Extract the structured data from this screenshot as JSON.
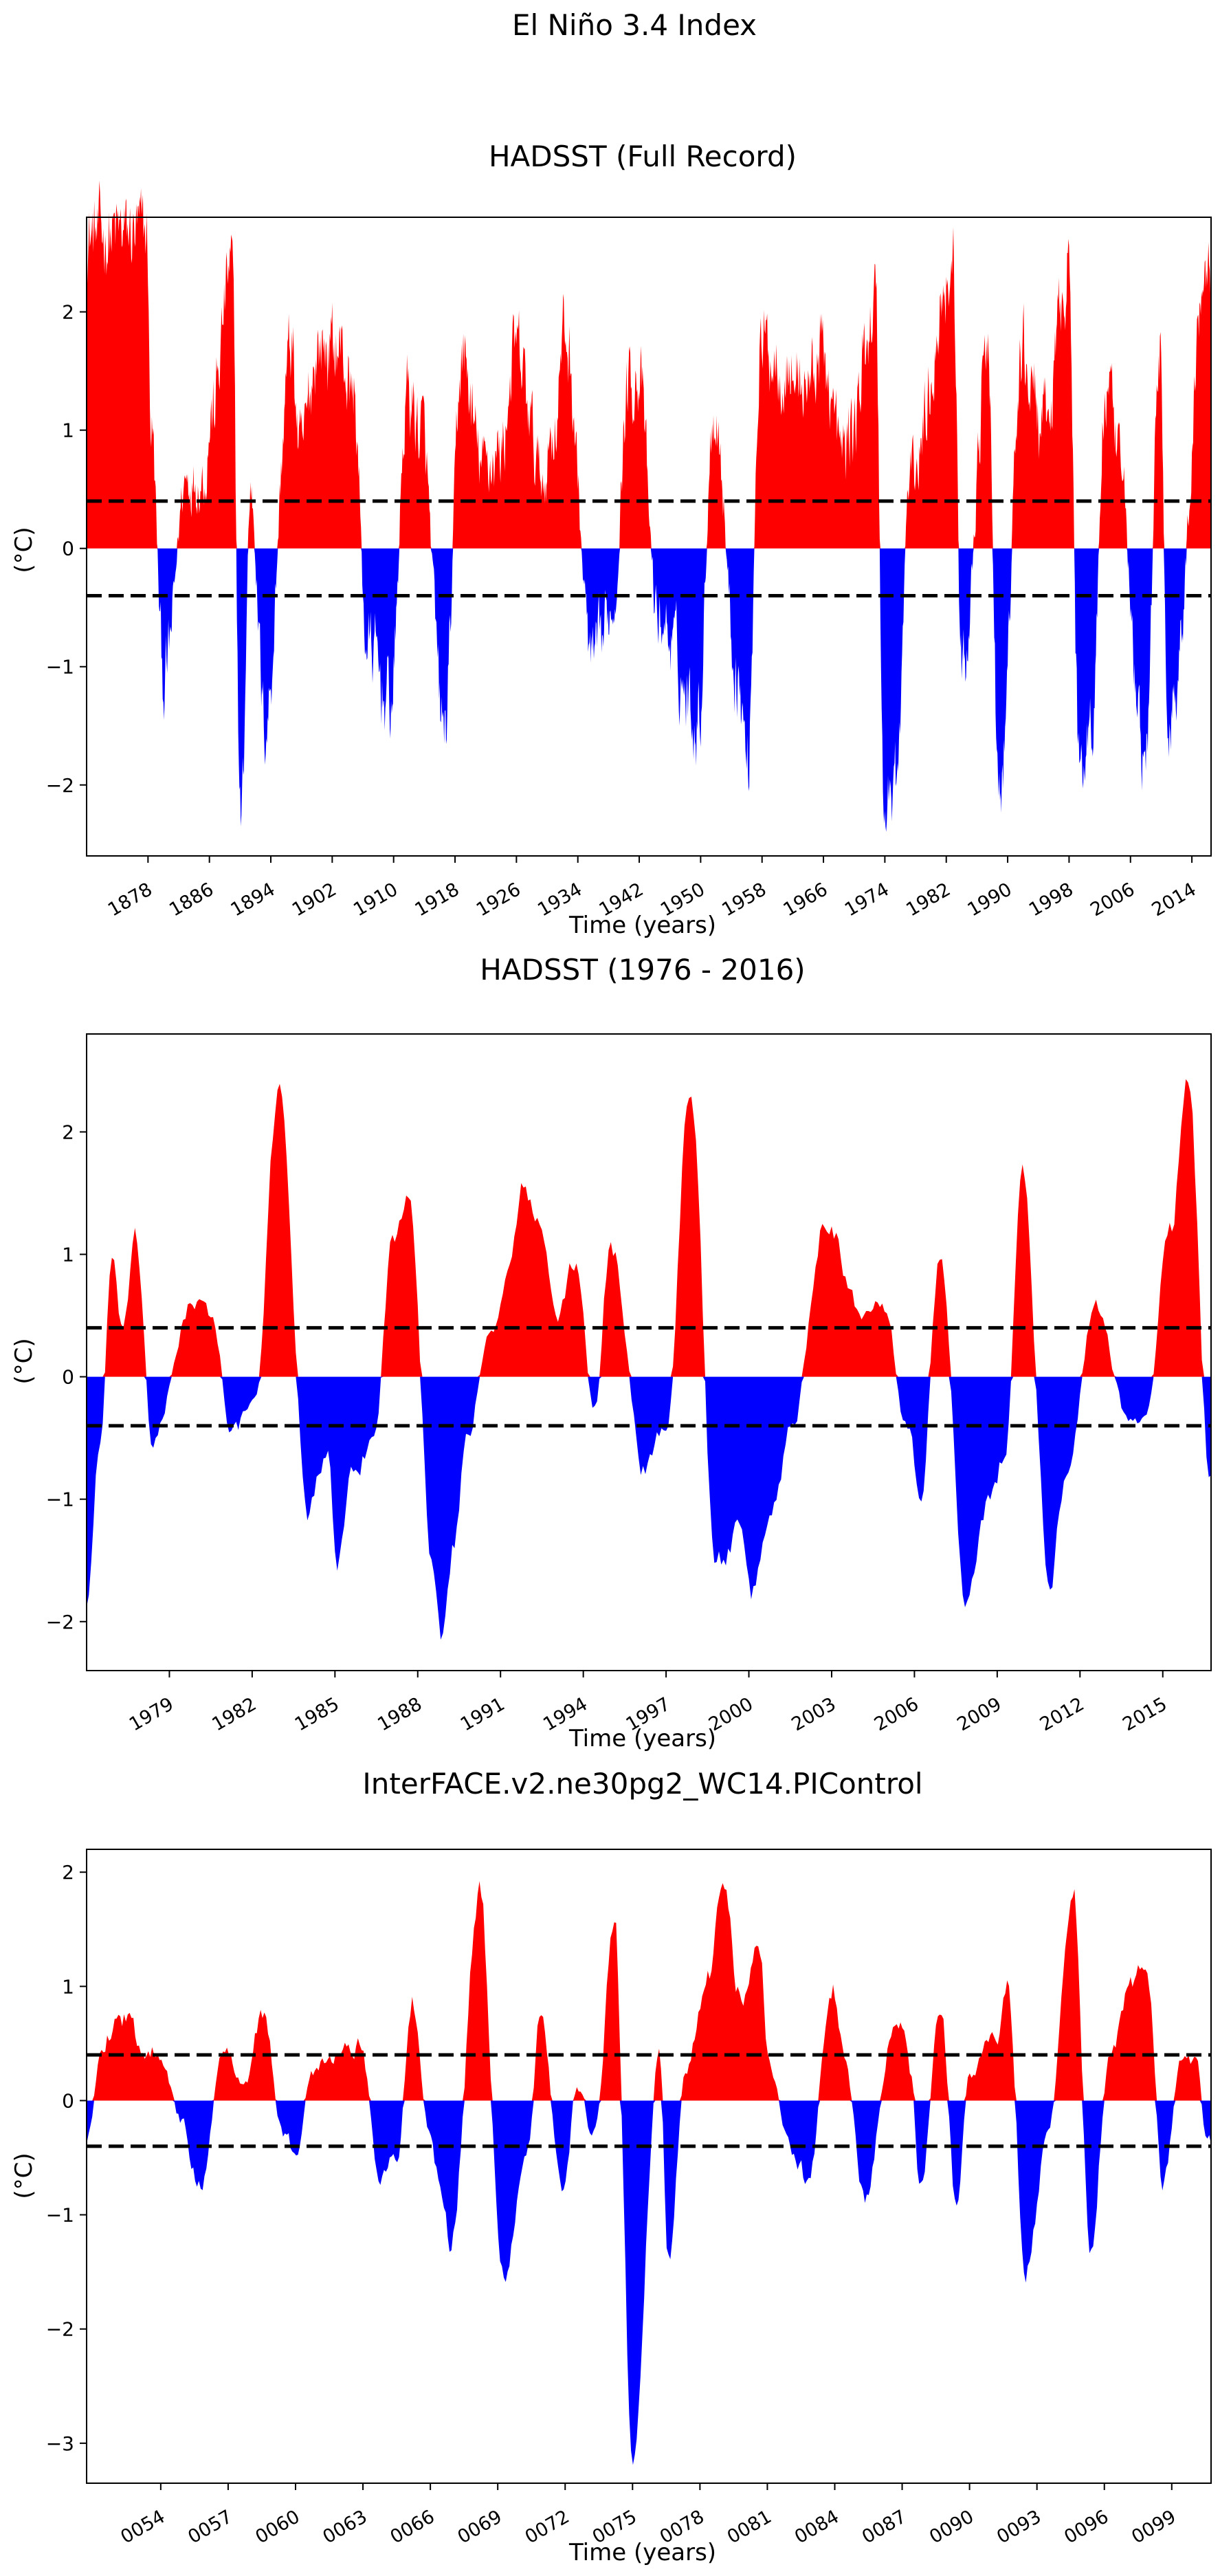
{
  "figure": {
    "suptitle": "El Niño 3.4 Index"
  },
  "chart_data": [
    {
      "id": "full",
      "type": "area",
      "title": "HADSST (Full Record)",
      "xlabel": "Time (years)",
      "ylabel": "(°C)",
      "xlim": [
        1870.0,
        2016.5
      ],
      "ylim": [
        -2.6,
        2.8
      ],
      "yticks": [
        -2,
        -1,
        0,
        1,
        2
      ],
      "xticks": [
        1878,
        1886,
        1894,
        1902,
        1910,
        1918,
        1926,
        1934,
        1942,
        1950,
        1958,
        1966,
        1974,
        1982,
        1990,
        1998,
        2006,
        2014
      ],
      "threshold_lines": [
        0.4,
        -0.4
      ],
      "positive_color": "#ff0000",
      "negative_color": "#0000ff",
      "amp": 1.6,
      "events": [
        [
          1877.9,
          2.65
        ],
        [
          1878.3,
          1.1
        ],
        [
          1880.1,
          -1.1
        ],
        [
          1883.0,
          0.6
        ],
        [
          1885.3,
          0.6
        ],
        [
          1886.2,
          1.1
        ],
        [
          1888.9,
          2.4
        ],
        [
          1890.1,
          -2.3
        ],
        [
          1891.4,
          0.5
        ],
        [
          1893.2,
          -1.5
        ],
        [
          1896.7,
          1.7
        ],
        [
          1897.8,
          0.8
        ],
        [
          1900.2,
          1.7
        ],
        [
          1902.8,
          1.7
        ],
        [
          1904.8,
          1.3
        ],
        [
          1906.5,
          -0.8
        ],
        [
          1909.6,
          -1.3
        ],
        [
          1911.8,
          1.3
        ],
        [
          1913.6,
          1.0
        ],
        [
          1916.6,
          -1.55
        ],
        [
          1918.9,
          1.6
        ],
        [
          1921.5,
          0.7
        ],
        [
          1923.9,
          0.8
        ],
        [
          1925.8,
          1.65
        ],
        [
          1929.5,
          0.6
        ],
        [
          1930.9,
          1.05
        ],
        [
          1932.3,
          1.8
        ],
        [
          1936.0,
          -1.0
        ],
        [
          1938.6,
          -0.5
        ],
        [
          1940.6,
          1.4
        ],
        [
          1941.8,
          1.5
        ],
        [
          1944.5,
          -0.6
        ],
        [
          1949.7,
          -1.4
        ],
        [
          1951.7,
          1.2
        ],
        [
          1954.9,
          -1.1
        ],
        [
          1956.1,
          -1.8
        ],
        [
          1957.8,
          1.7
        ],
        [
          1963.8,
          1.4
        ],
        [
          1965.8,
          1.65
        ],
        [
          1968.5,
          0.8
        ],
        [
          1969.6,
          1.0
        ],
        [
          1972.8,
          2.1
        ],
        [
          1973.9,
          -2.2
        ],
        [
          1975.6,
          -1.9
        ],
        [
          1977.2,
          0.6
        ],
        [
          1982.9,
          2.4
        ],
        [
          1984.0,
          -1.1
        ],
        [
          1987.4,
          1.6
        ],
        [
          1988.9,
          -2.15
        ],
        [
          1991.9,
          1.6
        ],
        [
          1994.9,
          1.0
        ],
        [
          1997.9,
          2.4
        ],
        [
          1999.3,
          -1.8
        ],
        [
          2000.9,
          -1.5
        ],
        [
          2002.8,
          1.3
        ],
        [
          2004.9,
          0.6
        ],
        [
          2007.0,
          -1.4
        ],
        [
          2007.9,
          -1.85
        ],
        [
          2009.9,
          1.7
        ],
        [
          2010.9,
          -1.7
        ],
        [
          2011.9,
          -1.0
        ],
        [
          2015.9,
          2.5
        ]
      ]
    },
    {
      "id": "recent",
      "type": "area",
      "title": "HADSST (1976 - 2016)",
      "xlabel": "Time (years)",
      "ylabel": "(°C)",
      "xlim": [
        1976.0,
        2016.75
      ],
      "ylim": [
        -2.4,
        2.8
      ],
      "yticks": [
        -2,
        -1,
        0,
        1,
        2
      ],
      "xticks": [
        1979,
        1982,
        1985,
        1988,
        1991,
        1994,
        1997,
        2000,
        2003,
        2006,
        2009,
        2012,
        2015
      ],
      "threshold_lines": [
        0.4,
        -0.4
      ],
      "positive_color": "#ff0000",
      "negative_color": "#0000ff",
      "amp": 0.55,
      "events": [
        [
          1976.0,
          -1.85
        ],
        [
          1976.5,
          -0.5
        ],
        [
          1976.9,
          0.9
        ],
        [
          1977.3,
          0.4
        ],
        [
          1977.8,
          1.05
        ],
        [
          1978.4,
          -0.55
        ],
        [
          1979.8,
          0.6
        ],
        [
          1980.5,
          0.5
        ],
        [
          1981.3,
          -0.45
        ],
        [
          1982.1,
          -0.2
        ],
        [
          1983.0,
          2.4
        ],
        [
          1984.0,
          -1.1
        ],
        [
          1984.7,
          -0.6
        ],
        [
          1985.1,
          -1.55
        ],
        [
          1985.6,
          -0.9
        ],
        [
          1986.4,
          -0.5
        ],
        [
          1987.1,
          1.1
        ],
        [
          1987.7,
          1.6
        ],
        [
          1988.5,
          -1.45
        ],
        [
          1988.9,
          -2.15
        ],
        [
          1989.3,
          -1.4
        ],
        [
          1989.8,
          -0.45
        ],
        [
          1990.6,
          0.3
        ],
        [
          1991.2,
          0.8
        ],
        [
          1991.9,
          1.55
        ],
        [
          1992.4,
          1.2
        ],
        [
          1993.1,
          0.5
        ],
        [
          1993.7,
          0.95
        ],
        [
          1994.4,
          -0.3
        ],
        [
          1995.0,
          1.1
        ],
        [
          1996.2,
          -0.75
        ],
        [
          1997.0,
          -0.4
        ],
        [
          1997.9,
          2.4
        ],
        [
          1998.8,
          -1.55
        ],
        [
          1999.6,
          -1.3
        ],
        [
          2000.1,
          -1.8
        ],
        [
          2000.8,
          -1.1
        ],
        [
          2001.6,
          -0.35
        ],
        [
          2002.8,
          1.35
        ],
        [
          2004.0,
          0.55
        ],
        [
          2004.8,
          0.7
        ],
        [
          2005.8,
          -0.45
        ],
        [
          2006.2,
          -1.05
        ],
        [
          2006.9,
          1.0
        ],
        [
          2007.9,
          -1.85
        ],
        [
          2008.7,
          -1.05
        ],
        [
          2009.3,
          -0.6
        ],
        [
          2009.9,
          1.7
        ],
        [
          2010.9,
          -1.75
        ],
        [
          2011.4,
          -0.85
        ],
        [
          2012.6,
          0.6
        ],
        [
          2013.7,
          -0.3
        ],
        [
          2014.3,
          -0.4
        ],
        [
          2015.3,
          1.2
        ],
        [
          2015.9,
          2.55
        ],
        [
          2016.7,
          -0.8
        ]
      ]
    },
    {
      "id": "model",
      "type": "area",
      "title": "InterFACE.v2.ne30pg2_WC14.PIControl",
      "xlabel": "Time (years)",
      "ylabel": "(°C)",
      "xlim": [
        50.7,
        100.75
      ],
      "ylim": [
        -3.35,
        2.2
      ],
      "yticks": [
        -3,
        -2,
        -1,
        0,
        1,
        2
      ],
      "xticks": [
        54,
        57,
        60,
        63,
        66,
        69,
        72,
        75,
        78,
        81,
        84,
        87,
        90,
        93,
        96,
        99
      ],
      "xtick_labels": [
        "0054",
        "0057",
        "0060",
        "0063",
        "0066",
        "0069",
        "0072",
        "0075",
        "0078",
        "0081",
        "0084",
        "0087",
        "0090",
        "0093",
        "0096",
        "0099"
      ],
      "threshold_lines": [
        0.4,
        -0.4
      ],
      "positive_color": "#ff0000",
      "negative_color": "#0000ff",
      "amp": 0.6,
      "events": [
        [
          50.7,
          -0.4
        ],
        [
          51.4,
          0.55
        ],
        [
          52.2,
          0.75
        ],
        [
          53.3,
          0.45
        ],
        [
          54.0,
          0.45
        ],
        [
          54.9,
          -0.2
        ],
        [
          55.7,
          -0.75
        ],
        [
          56.8,
          0.4
        ],
        [
          57.8,
          0.2
        ],
        [
          58.5,
          0.75
        ],
        [
          59.5,
          -0.3
        ],
        [
          60.0,
          -0.5
        ],
        [
          60.7,
          0.3
        ],
        [
          61.5,
          0.4
        ],
        [
          62.3,
          0.45
        ],
        [
          62.9,
          0.5
        ],
        [
          63.7,
          -0.6
        ],
        [
          64.5,
          -0.5
        ],
        [
          65.2,
          0.85
        ],
        [
          65.9,
          -0.3
        ],
        [
          66.4,
          -0.65
        ],
        [
          66.9,
          -1.2
        ],
        [
          68.2,
          1.8
        ],
        [
          69.2,
          -1.55
        ],
        [
          70.3,
          -0.5
        ],
        [
          70.9,
          0.75
        ],
        [
          71.9,
          -0.9
        ],
        [
          72.5,
          0.1
        ],
        [
          73.3,
          -0.3
        ],
        [
          74.2,
          1.5
        ],
        [
          75.0,
          -3.1
        ],
        [
          76.2,
          0.4
        ],
        [
          76.6,
          -1.4
        ],
        [
          77.4,
          0.3
        ],
        [
          78.4,
          1.2
        ],
        [
          79.0,
          1.9
        ],
        [
          79.8,
          0.9
        ],
        [
          80.7,
          1.3
        ],
        [
          81.0,
          0.4
        ],
        [
          82.2,
          -0.5
        ],
        [
          82.8,
          -0.7
        ],
        [
          83.9,
          1.0
        ],
        [
          84.5,
          0.3
        ],
        [
          85.3,
          -0.9
        ],
        [
          86.6,
          0.55
        ],
        [
          87.0,
          0.7
        ],
        [
          87.4,
          0.2
        ],
        [
          87.8,
          -0.8
        ],
        [
          88.7,
          0.9
        ],
        [
          89.4,
          -0.9
        ],
        [
          90.0,
          0.2
        ],
        [
          91.2,
          0.6
        ],
        [
          91.7,
          0.95
        ],
        [
          92.5,
          -1.45
        ],
        [
          93.5,
          -0.3
        ],
        [
          94.6,
          1.9
        ],
        [
          95.4,
          -1.3
        ],
        [
          96.2,
          0.35
        ],
        [
          97.3,
          1.0
        ],
        [
          97.9,
          1.2
        ],
        [
          98.6,
          -0.7
        ],
        [
          99.4,
          0.3
        ],
        [
          100.1,
          0.3
        ],
        [
          100.6,
          -0.4
        ]
      ]
    }
  ]
}
